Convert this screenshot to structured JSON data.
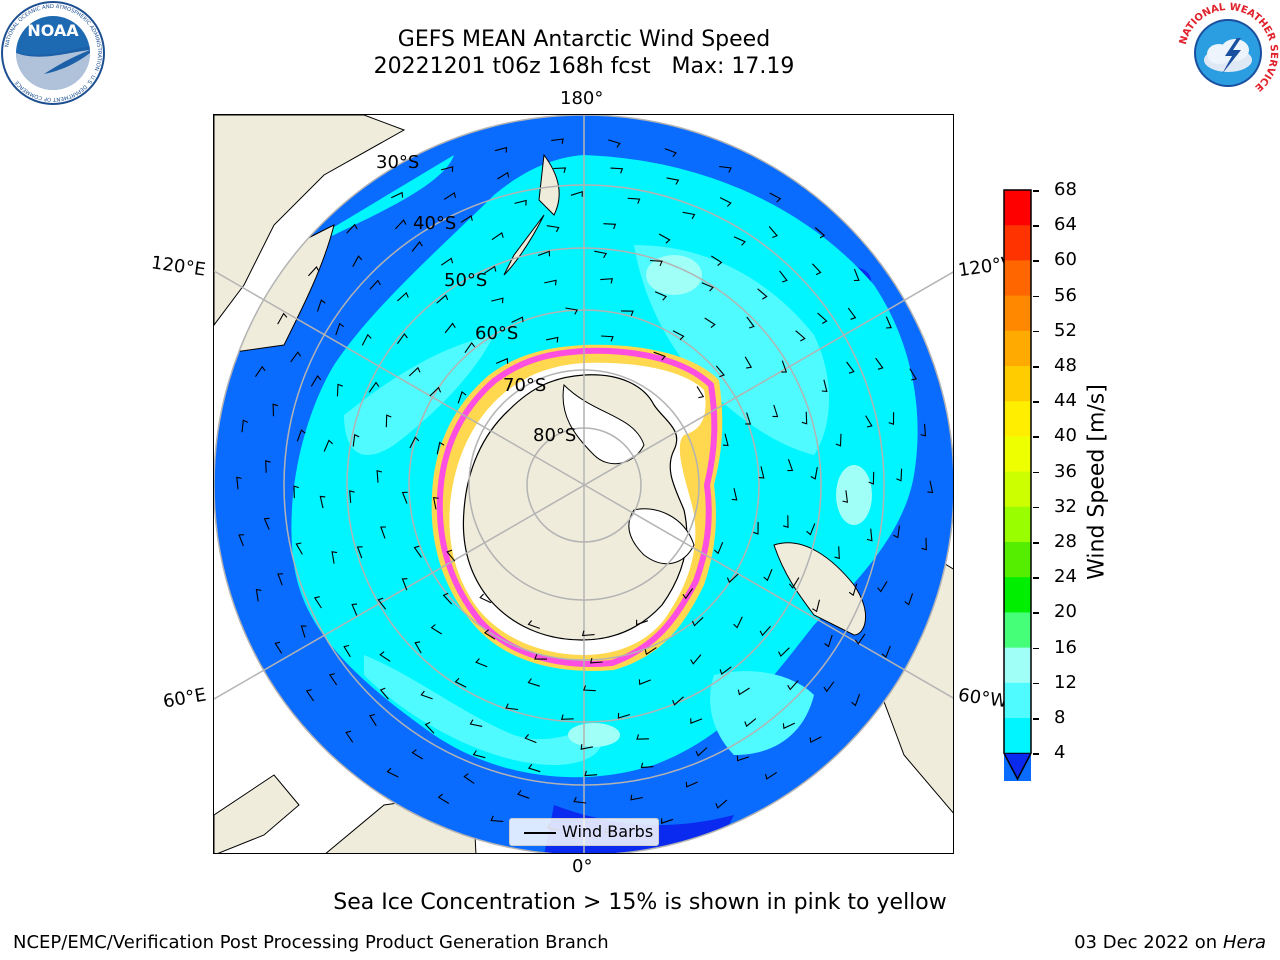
{
  "header": {
    "title_line1": "GEFS MEAN Antarctic Wind Speed",
    "title_line2": "20221201 t06z 168h fcst   Max: 17.19"
  },
  "logos": {
    "noaa_text": "NOAA",
    "noaa_ring_text": "NATIONAL OCEANIC AND ATMOSPHERIC ADMINISTRATION · U.S. DEPARTMENT OF COMMERCE",
    "nws_ring_text": "NATIONAL WEATHER SERVICE"
  },
  "map": {
    "projection": "south-polar-stereographic",
    "longitude_labels": {
      "top": "180°",
      "bottom": "0°",
      "upper_left": "120°E",
      "lower_left": "60°E",
      "upper_right": "120°W",
      "lower_right": "60°W"
    },
    "latitude_labels": [
      "30°S",
      "40°S",
      "50°S",
      "60°S",
      "70°S",
      "80°S"
    ],
    "colors": {
      "land": "#efecdc",
      "ocean_4_8": "#0a6bff",
      "ocean_8_12": "#00f5ff",
      "ocean_12_16": "#4ffbff",
      "ocean_16_20": "#a0fff6",
      "below_4": "#0a2bef",
      "ice_pink": "#ff4fe0",
      "ice_yellow": "#ffd84f",
      "grid": "#b3b3b3"
    }
  },
  "legend": {
    "label": "Wind Barbs"
  },
  "colorbar": {
    "label": "Wind Speed [m/s]",
    "ticks": [
      "68",
      "64",
      "60",
      "56",
      "52",
      "48",
      "44",
      "40",
      "36",
      "32",
      "28",
      "24",
      "20",
      "16",
      "12",
      "8",
      "4"
    ],
    "colors": [
      "#ff0000",
      "#ff3300",
      "#ff6600",
      "#ff8800",
      "#ffaa00",
      "#ffcc00",
      "#ffee00",
      "#eeff00",
      "#ccff00",
      "#99ff00",
      "#55ee00",
      "#00ee00",
      "#44ff77",
      "#a0fff6",
      "#4ffbff",
      "#00f5ff",
      "#0a6bff"
    ],
    "extend_color": "#0a2bef"
  },
  "footer": {
    "caption": "Sea Ice Concentration > 15% is shown in pink to yellow",
    "credit": "NCEP/EMC/Verification Post Processing Product Generation Branch",
    "date": "03 Dec 2022 on",
    "host": "Hera"
  }
}
